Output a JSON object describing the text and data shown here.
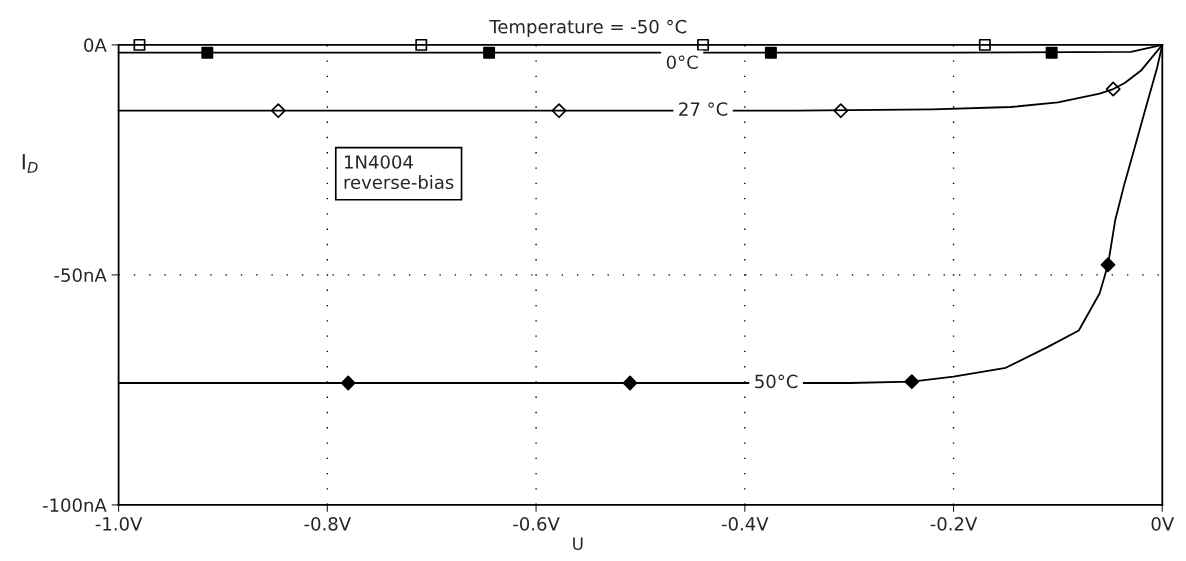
{
  "chart_data": {
    "type": "line",
    "xlabel": "U",
    "ylabel": "I$_{D}$",
    "xlim": [
      -1.0,
      0
    ],
    "ylim": [
      -100,
      0
    ],
    "xticks": [
      {
        "value": -1.0,
        "label": "-1.0V"
      },
      {
        "value": -0.8,
        "label": "-0.8V"
      },
      {
        "value": -0.6,
        "label": "-0.6V"
      },
      {
        "value": -0.4,
        "label": "-0.4V"
      },
      {
        "value": -0.2,
        "label": "-0.2V"
      },
      {
        "value": 0,
        "label": "0V"
      }
    ],
    "yticks": [
      {
        "value": -100,
        "label": "-100nA"
      },
      {
        "value": -50,
        "label": "-50nA"
      },
      {
        "value": 0,
        "label": "0A"
      }
    ],
    "grid": true,
    "legend": false,
    "line_style": "solid",
    "annotations": [
      "1N4004\nreverse-bias"
    ],
    "series": [
      {
        "name": "Temperature = -50 °C",
        "color": "#000000",
        "marker": "none",
        "x": [
          -1.0,
          0
        ],
        "values": [
          0,
          0
        ]
      },
      {
        "name": "0°C",
        "color": "#000000",
        "marker": "none",
        "x": [
          -1.0,
          -0.2,
          -0.03,
          0
        ],
        "values": [
          -1.7,
          -1.7,
          -1.5,
          0
        ]
      },
      {
        "name": "27 °C",
        "color": "#000000",
        "marker": "none",
        "x": [
          -1.0,
          -0.35,
          -0.22,
          -0.145,
          -0.1,
          -0.06,
          -0.047,
          -0.036,
          -0.02,
          0
        ],
        "values": [
          -14.3,
          -14.3,
          -14.0,
          -13.5,
          -12.5,
          -10.6,
          -9.6,
          -8.3,
          -5.5,
          0
        ]
      },
      {
        "name": "50°C",
        "color": "#000000",
        "marker": "none",
        "x": [
          -1.0,
          -0.3,
          -0.24,
          -0.2,
          -0.15,
          -0.11,
          -0.08,
          -0.06,
          -0.052,
          -0.045,
          -0.036,
          -0.026,
          -0.015,
          -0.005,
          0
        ],
        "values": [
          -73.5,
          -73.5,
          -73.2,
          -72.1,
          -70.2,
          -65.7,
          -62.1,
          -54.0,
          -47.8,
          -38.0,
          -30.0,
          -22.0,
          -13.0,
          -5.0,
          0
        ]
      },
      {
        "type": "scatter",
        "color": "#000000",
        "marker": "square",
        "x": [
          -0.98,
          -0.71,
          -0.44,
          -0.17
        ],
        "values": [
          0,
          0,
          0,
          0
        ]
      },
      {
        "type": "scatter",
        "color": "#000000",
        "marker": "square",
        "x": [
          -0.915,
          -0.645,
          -0.375,
          -0.106
        ],
        "values": [
          -1.7,
          -1.7,
          -1.7,
          -1.7
        ]
      },
      {
        "type": "scatter",
        "color": "#000000",
        "marker": "diamond",
        "x": [
          -0.847,
          -0.578,
          -0.308,
          -0.047
        ],
        "values": [
          -14.3,
          -14.3,
          -14.3,
          -9.6
        ]
      },
      {
        "type": "scatter",
        "color": "#000000",
        "marker": "diamond",
        "x": [
          -0.78,
          -0.51,
          -0.24,
          -0.052
        ],
        "values": [
          -73.5,
          -73.5,
          -73.2,
          -47.8
        ]
      }
    ]
  }
}
